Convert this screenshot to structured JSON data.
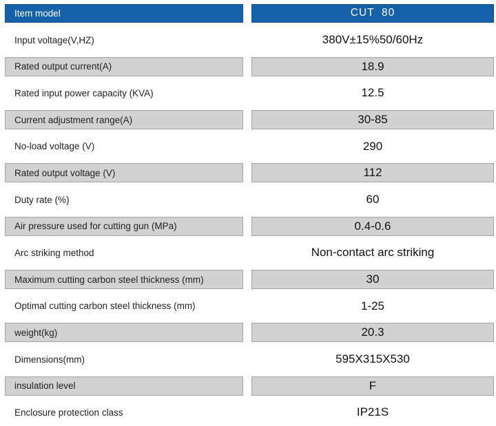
{
  "header": {
    "label": "Item model",
    "value": "CUT  80"
  },
  "rows": [
    {
      "label": "Input voltage(V,HZ)",
      "value": "380V±15%50/60Hz"
    },
    {
      "label": "Rated output current(A)",
      "value": "18.9"
    },
    {
      "label": "Rated input power capacity (KVA)",
      "value": "12.5"
    },
    {
      "label": "Current adjustment range(A)",
      "value": "30-85"
    },
    {
      "label": "No-load voltage (V)",
      "value": "290"
    },
    {
      "label": "Rated output voltage (V)",
      "value": "112"
    },
    {
      "label": "Duty rate (%)",
      "value": "60"
    },
    {
      "label": "Air pressure used for cutting gun (MPa)",
      "value": "0.4-0.6"
    },
    {
      "label": "Arc striking method",
      "value": "Non-contact arc striking"
    },
    {
      "label": "Maximum cutting carbon steel thickness (mm)",
      "value": "30"
    },
    {
      "label": "Optimal cutting carbon steel thickness (mm)",
      "value": "1-25"
    },
    {
      "label": "weight(kg)",
      "value": "20.3"
    },
    {
      "label": "Dimensions(mm)",
      "value": "595X315X530"
    },
    {
      "label": "insulation level",
      "value": "F"
    },
    {
      "label": "Enclosure protection class",
      "value": "IP21S"
    }
  ],
  "colors": {
    "header_blue": "#1560a8",
    "header_blue_border": "#0f4f8f",
    "row_gray": "#d2d2d2",
    "row_gray_border": "#a3a3a3",
    "text_dark": "#222222"
  }
}
